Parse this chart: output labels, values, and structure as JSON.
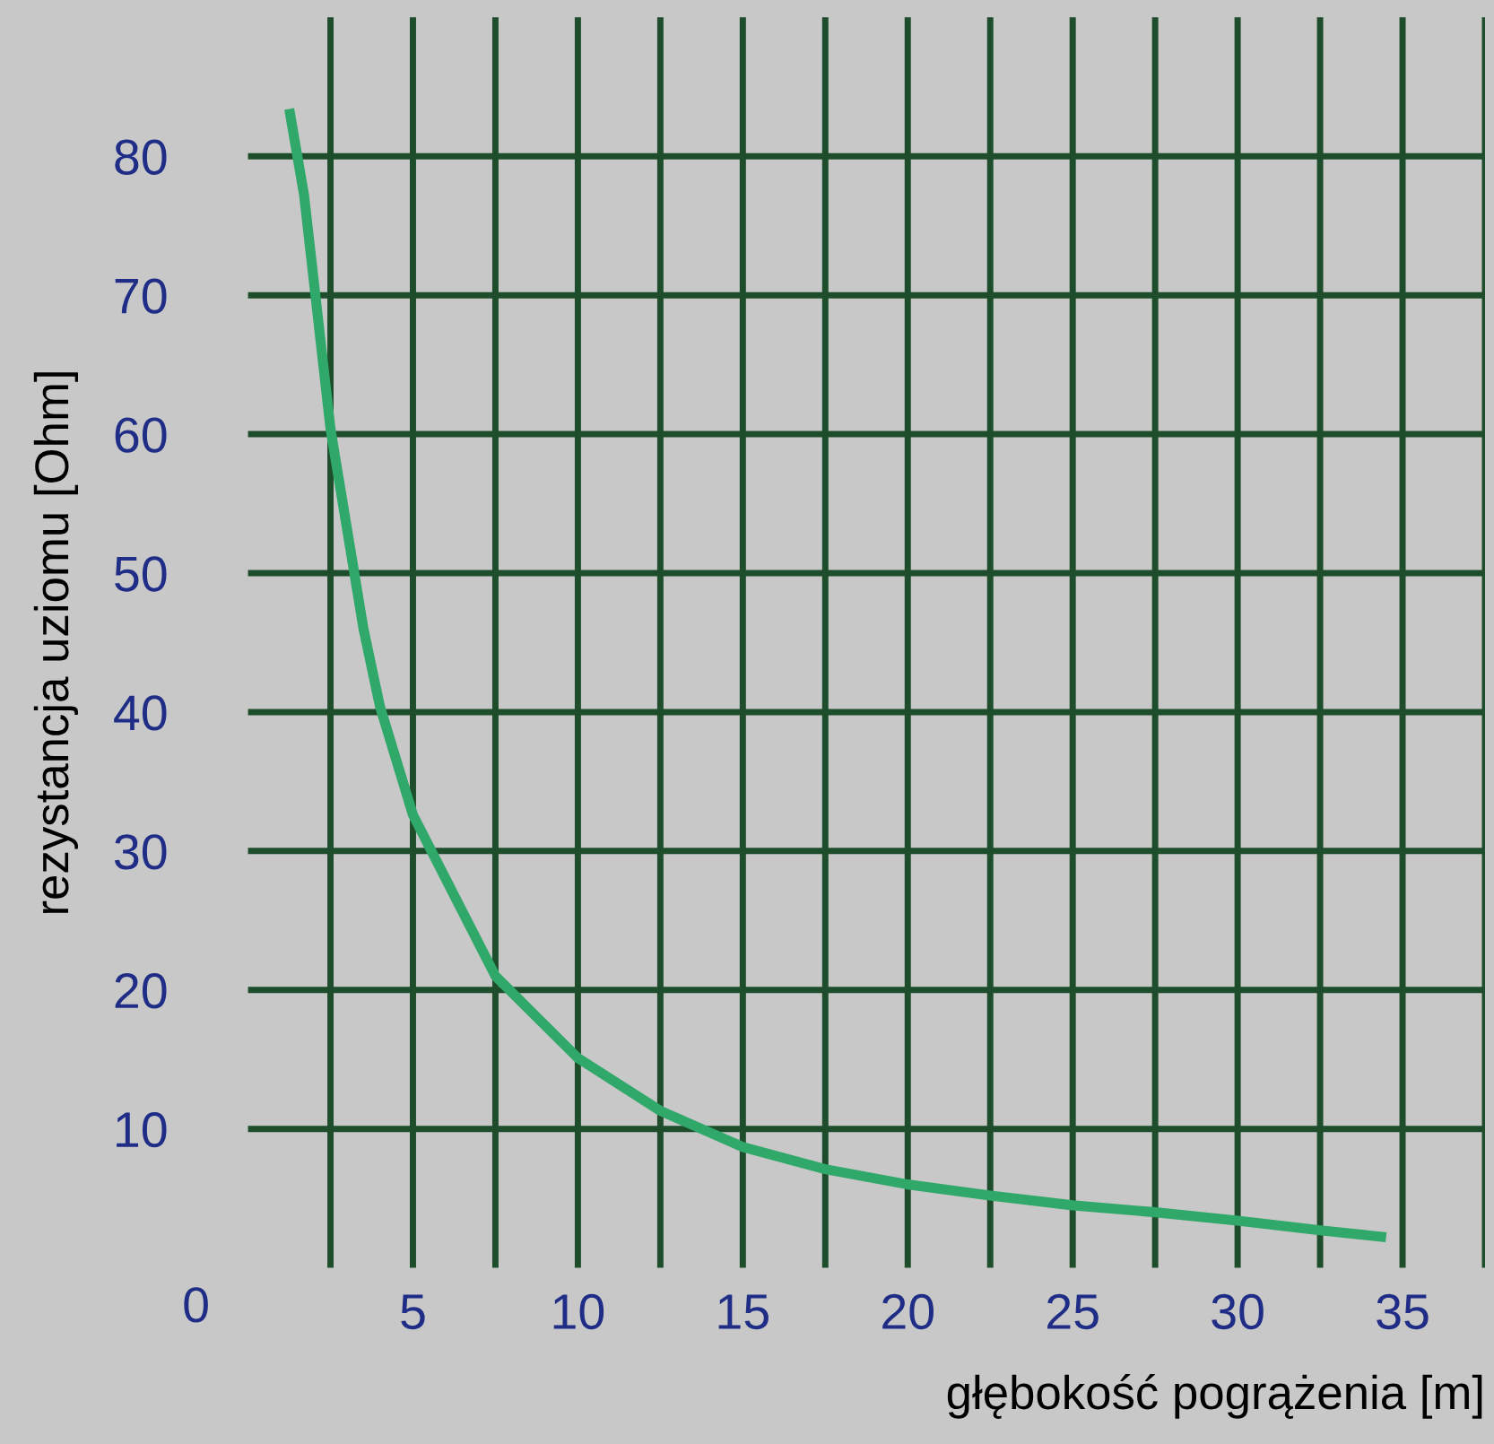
{
  "chart_data": {
    "type": "line",
    "xlabel": "głębokość pogrążenia [m]",
    "ylabel": "rezystancja uziomu [Ohm]",
    "annotations": [
      "0"
    ],
    "series": [
      {
        "color": "#2fa86a",
        "x": [
          1.25,
          1.7,
          2.5,
          3.5,
          4,
          5,
          7.5,
          10,
          12.5,
          15,
          17.5,
          20,
          22.5,
          25,
          27.5,
          30,
          32.5,
          34.5
        ],
        "values": [
          83.4,
          77.2,
          60.4,
          46,
          40.4,
          32.6,
          21,
          15.1,
          11.3,
          8.7,
          7.1,
          6.0,
          5.2,
          4.5,
          4.0,
          3.4,
          2.7,
          2.2
        ]
      }
    ],
    "xlim": [
      0,
      37.5
    ],
    "ylim": [
      0,
      90
    ],
    "xticks": [
      {
        "value": 2.5,
        "label": null
      },
      5,
      {
        "value": 7.5,
        "label": null
      },
      10,
      {
        "value": 12.5,
        "label": null
      },
      15,
      {
        "value": 17.5,
        "label": null
      },
      20,
      {
        "value": 22.5,
        "label": null
      },
      25,
      {
        "value": 27.5,
        "label": null
      },
      30,
      {
        "value": 32.5,
        "label": null
      },
      35,
      {
        "value": 37.5,
        "label": null
      }
    ],
    "yticks": [
      10,
      20,
      30,
      40,
      50,
      60,
      70,
      80
    ],
    "grid": true,
    "marker": "none",
    "line_style": "solid"
  }
}
